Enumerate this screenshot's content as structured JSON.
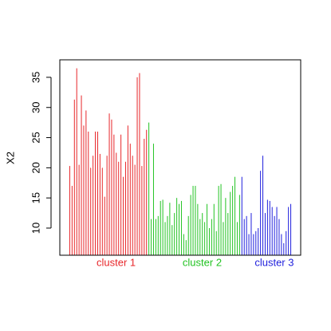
{
  "chart_data": {
    "type": "bar",
    "y_label": "X2",
    "series": [
      {
        "name": "cluster 1",
        "color": "#e8262a",
        "values": [
          20.3,
          17,
          31.3,
          36.5,
          20.5,
          32,
          27,
          29.5,
          26,
          20,
          22,
          26,
          26,
          22.3,
          20,
          15.2,
          22,
          29,
          28,
          25.5,
          22.5,
          21,
          25.5,
          18.5,
          21,
          27,
          24,
          22,
          20.5,
          35,
          35.7,
          20.3,
          24.8,
          26.3
        ]
      },
      {
        "name": "cluster 2",
        "color": "#22c322",
        "values": [
          27.5,
          11.5,
          24,
          11.5,
          12,
          14.5,
          14.7,
          11,
          12,
          14.2,
          10.5,
          12.5,
          15,
          14,
          14.5,
          9,
          8,
          12,
          15.5,
          17,
          17,
          14,
          11.5,
          12.5,
          11,
          14,
          10,
          11.5,
          14,
          9.5,
          17,
          17.3,
          11,
          15,
          12.5,
          16,
          17,
          18.5,
          11,
          15.5
        ]
      },
      {
        "name": "cluster 3",
        "color": "#1e1edc",
        "values": [
          18.5,
          11.5,
          12,
          9,
          12.5,
          9,
          9.5,
          10,
          19.5,
          22,
          12.5,
          14.7,
          14.5,
          13.5,
          12,
          13.5,
          11.5,
          9,
          7.5,
          9.5,
          13.5,
          14
        ]
      }
    ],
    "ylim": [
      5.5,
      37.9
    ],
    "yticks": [
      10,
      15,
      20,
      25,
      30,
      35
    ]
  }
}
